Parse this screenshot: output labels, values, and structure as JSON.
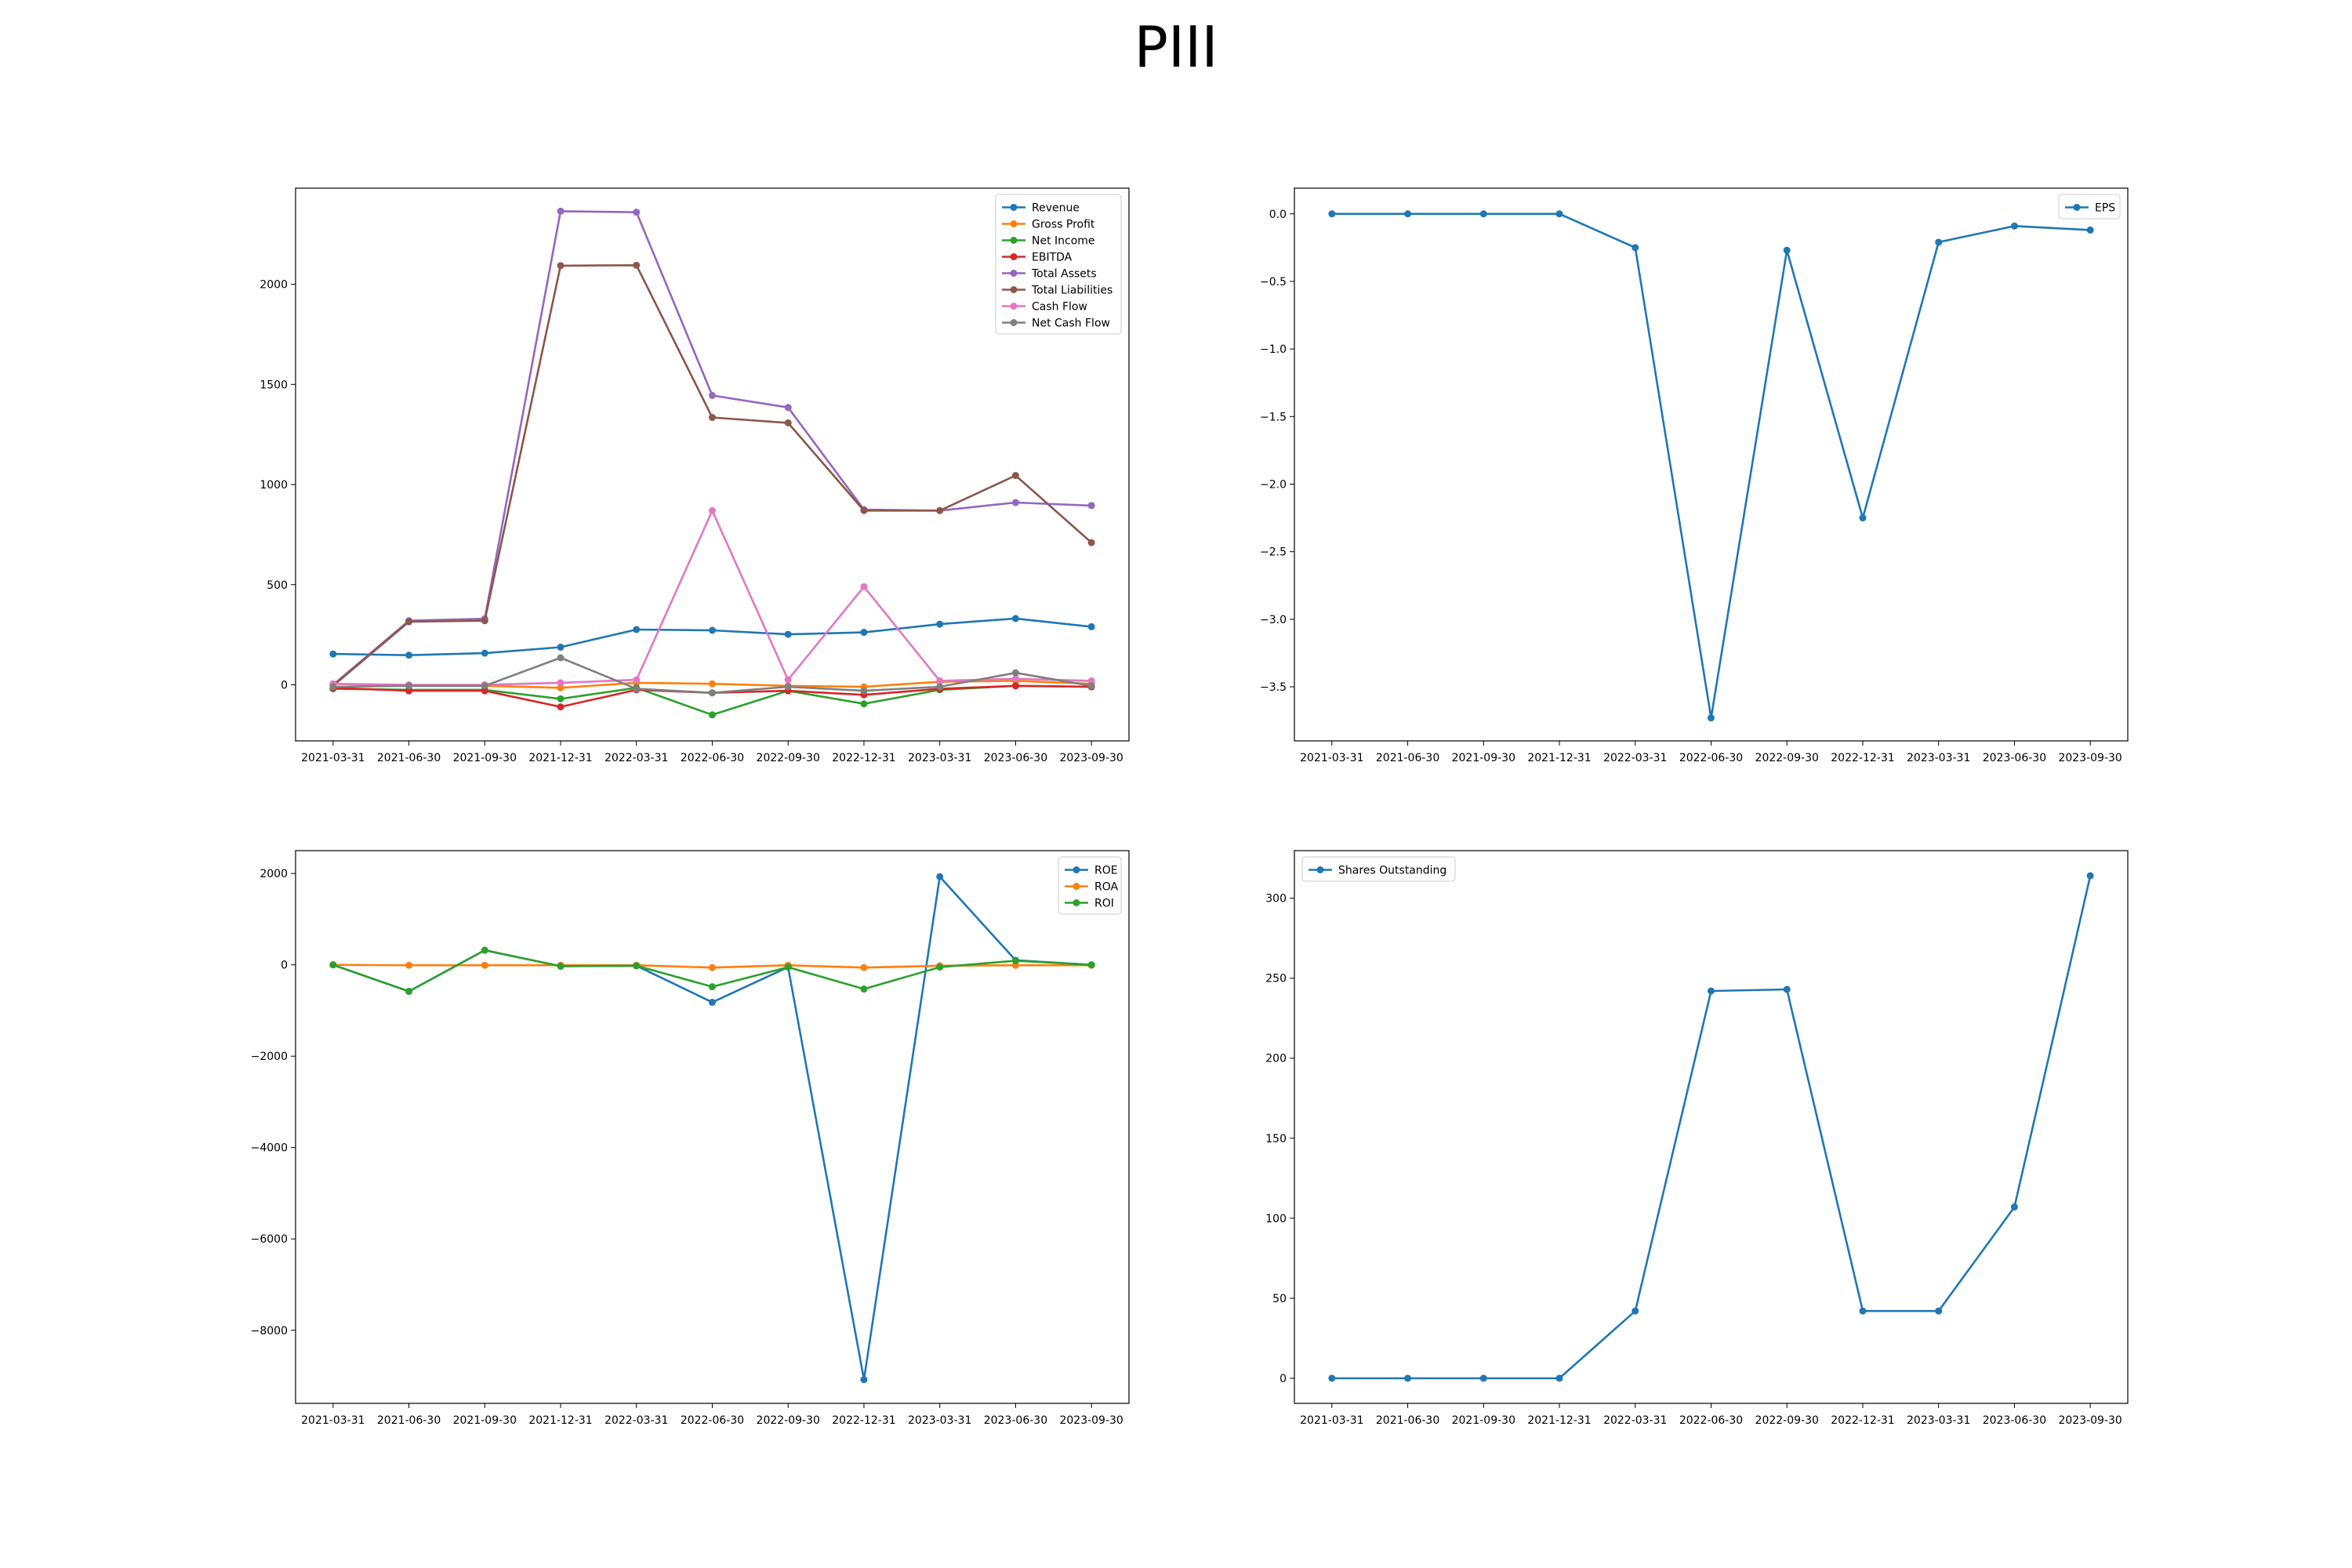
{
  "page": {
    "title": "PIII"
  },
  "chart_data": [
    {
      "type": "line",
      "x": [
        "2021-03-31",
        "2021-06-30",
        "2021-09-30",
        "2021-12-31",
        "2022-03-31",
        "2022-06-30",
        "2022-09-30",
        "2022-12-31",
        "2023-03-31",
        "2023-06-30",
        "2023-09-30"
      ],
      "ylim": [
        -280,
        2480
      ],
      "yticks": [
        0,
        500,
        1000,
        1500,
        2000
      ],
      "legend": "top-right",
      "grid": false,
      "series": [
        {
          "name": "Revenue",
          "color": "#1f77b4",
          "values": [
            154,
            148,
            158,
            188,
            276,
            272,
            252,
            262,
            303,
            331,
            290
          ]
        },
        {
          "name": "Gross Profit",
          "color": "#ff7f0e",
          "values": [
            5,
            -5,
            -5,
            -15,
            10,
            5,
            -5,
            -10,
            15,
            20,
            5
          ]
        },
        {
          "name": "Net Income",
          "color": "#2ca02c",
          "values": [
            -20,
            -25,
            -25,
            -70,
            -15,
            -150,
            -30,
            -95,
            -25,
            -5,
            -10
          ]
        },
        {
          "name": "EBITDA",
          "color": "#d62728",
          "values": [
            -15,
            -30,
            -30,
            -110,
            -25,
            -40,
            -30,
            -50,
            -20,
            -5,
            -10
          ]
        },
        {
          "name": "Total Assets",
          "color": "#9467bd",
          "values": [
            0,
            320,
            330,
            2365,
            2360,
            1445,
            1385,
            875,
            870,
            910,
            895
          ]
        },
        {
          "name": "Total Liabilities",
          "color": "#8c564b",
          "values": [
            -5,
            315,
            320,
            2093,
            2095,
            1335,
            1308,
            870,
            870,
            1045,
            710
          ]
        },
        {
          "name": "Cash Flow",
          "color": "#e377c2",
          "values": [
            5,
            0,
            0,
            10,
            25,
            870,
            25,
            490,
            20,
            30,
            20
          ]
        },
        {
          "name": "Net Cash Flow",
          "color": "#7f7f7f",
          "values": [
            -10,
            -5,
            -5,
            135,
            -20,
            -40,
            -10,
            -30,
            -10,
            60,
            -5
          ]
        }
      ]
    },
    {
      "type": "line",
      "x": [
        "2021-03-31",
        "2021-06-30",
        "2021-09-30",
        "2021-12-31",
        "2022-03-31",
        "2022-06-30",
        "2022-09-30",
        "2022-12-31",
        "2023-03-31",
        "2023-06-30",
        "2023-09-30"
      ],
      "ylim": [
        -3.9,
        0.19
      ],
      "yticks": [
        0.0,
        -0.5,
        -1.0,
        -1.5,
        -2.0,
        -2.5,
        -3.0,
        -3.5
      ],
      "legend": "top-right",
      "grid": false,
      "series": [
        {
          "name": "EPS",
          "color": "#1f77b4",
          "values": [
            0.0,
            0.0,
            0.0,
            0.0,
            -0.25,
            -3.73,
            -0.27,
            -2.25,
            -0.21,
            -0.09,
            -0.12
          ]
        }
      ]
    },
    {
      "type": "line",
      "x": [
        "2021-03-31",
        "2021-06-30",
        "2021-09-30",
        "2021-12-31",
        "2022-03-31",
        "2022-06-30",
        "2022-09-30",
        "2022-12-31",
        "2023-03-31",
        "2023-06-30",
        "2023-09-30"
      ],
      "ylim": [
        -9600,
        2500
      ],
      "yticks": [
        2000,
        0,
        -2000,
        -4000,
        -6000,
        -8000
      ],
      "legend": "top-right",
      "grid": false,
      "series": [
        {
          "name": "ROE",
          "color": "#1f77b4",
          "values": [
            0,
            -580,
            320,
            -30,
            -20,
            -820,
            -50,
            -9080,
            1930,
            100,
            0
          ]
        },
        {
          "name": "ROA",
          "color": "#ff7f0e",
          "values": [
            0,
            -10,
            -10,
            -10,
            -10,
            -60,
            -10,
            -60,
            -20,
            -10,
            -10
          ]
        },
        {
          "name": "ROI",
          "color": "#2ca02c",
          "values": [
            0,
            -580,
            320,
            -30,
            -20,
            -480,
            -50,
            -530,
            -50,
            90,
            0
          ]
        }
      ]
    },
    {
      "type": "line",
      "x": [
        "2021-03-31",
        "2021-06-30",
        "2021-09-30",
        "2021-12-31",
        "2022-03-31",
        "2022-06-30",
        "2022-09-30",
        "2022-12-31",
        "2023-03-31",
        "2023-06-30",
        "2023-09-30"
      ],
      "ylim": [
        -15.7,
        329.7
      ],
      "yticks": [
        0,
        50,
        100,
        150,
        200,
        250,
        300
      ],
      "legend": "top-left",
      "grid": false,
      "series": [
        {
          "name": "Shares Outstanding",
          "color": "#1f77b4",
          "values": [
            0,
            0,
            0,
            0,
            42,
            242,
            243,
            42,
            42,
            107,
            314
          ]
        }
      ]
    }
  ]
}
